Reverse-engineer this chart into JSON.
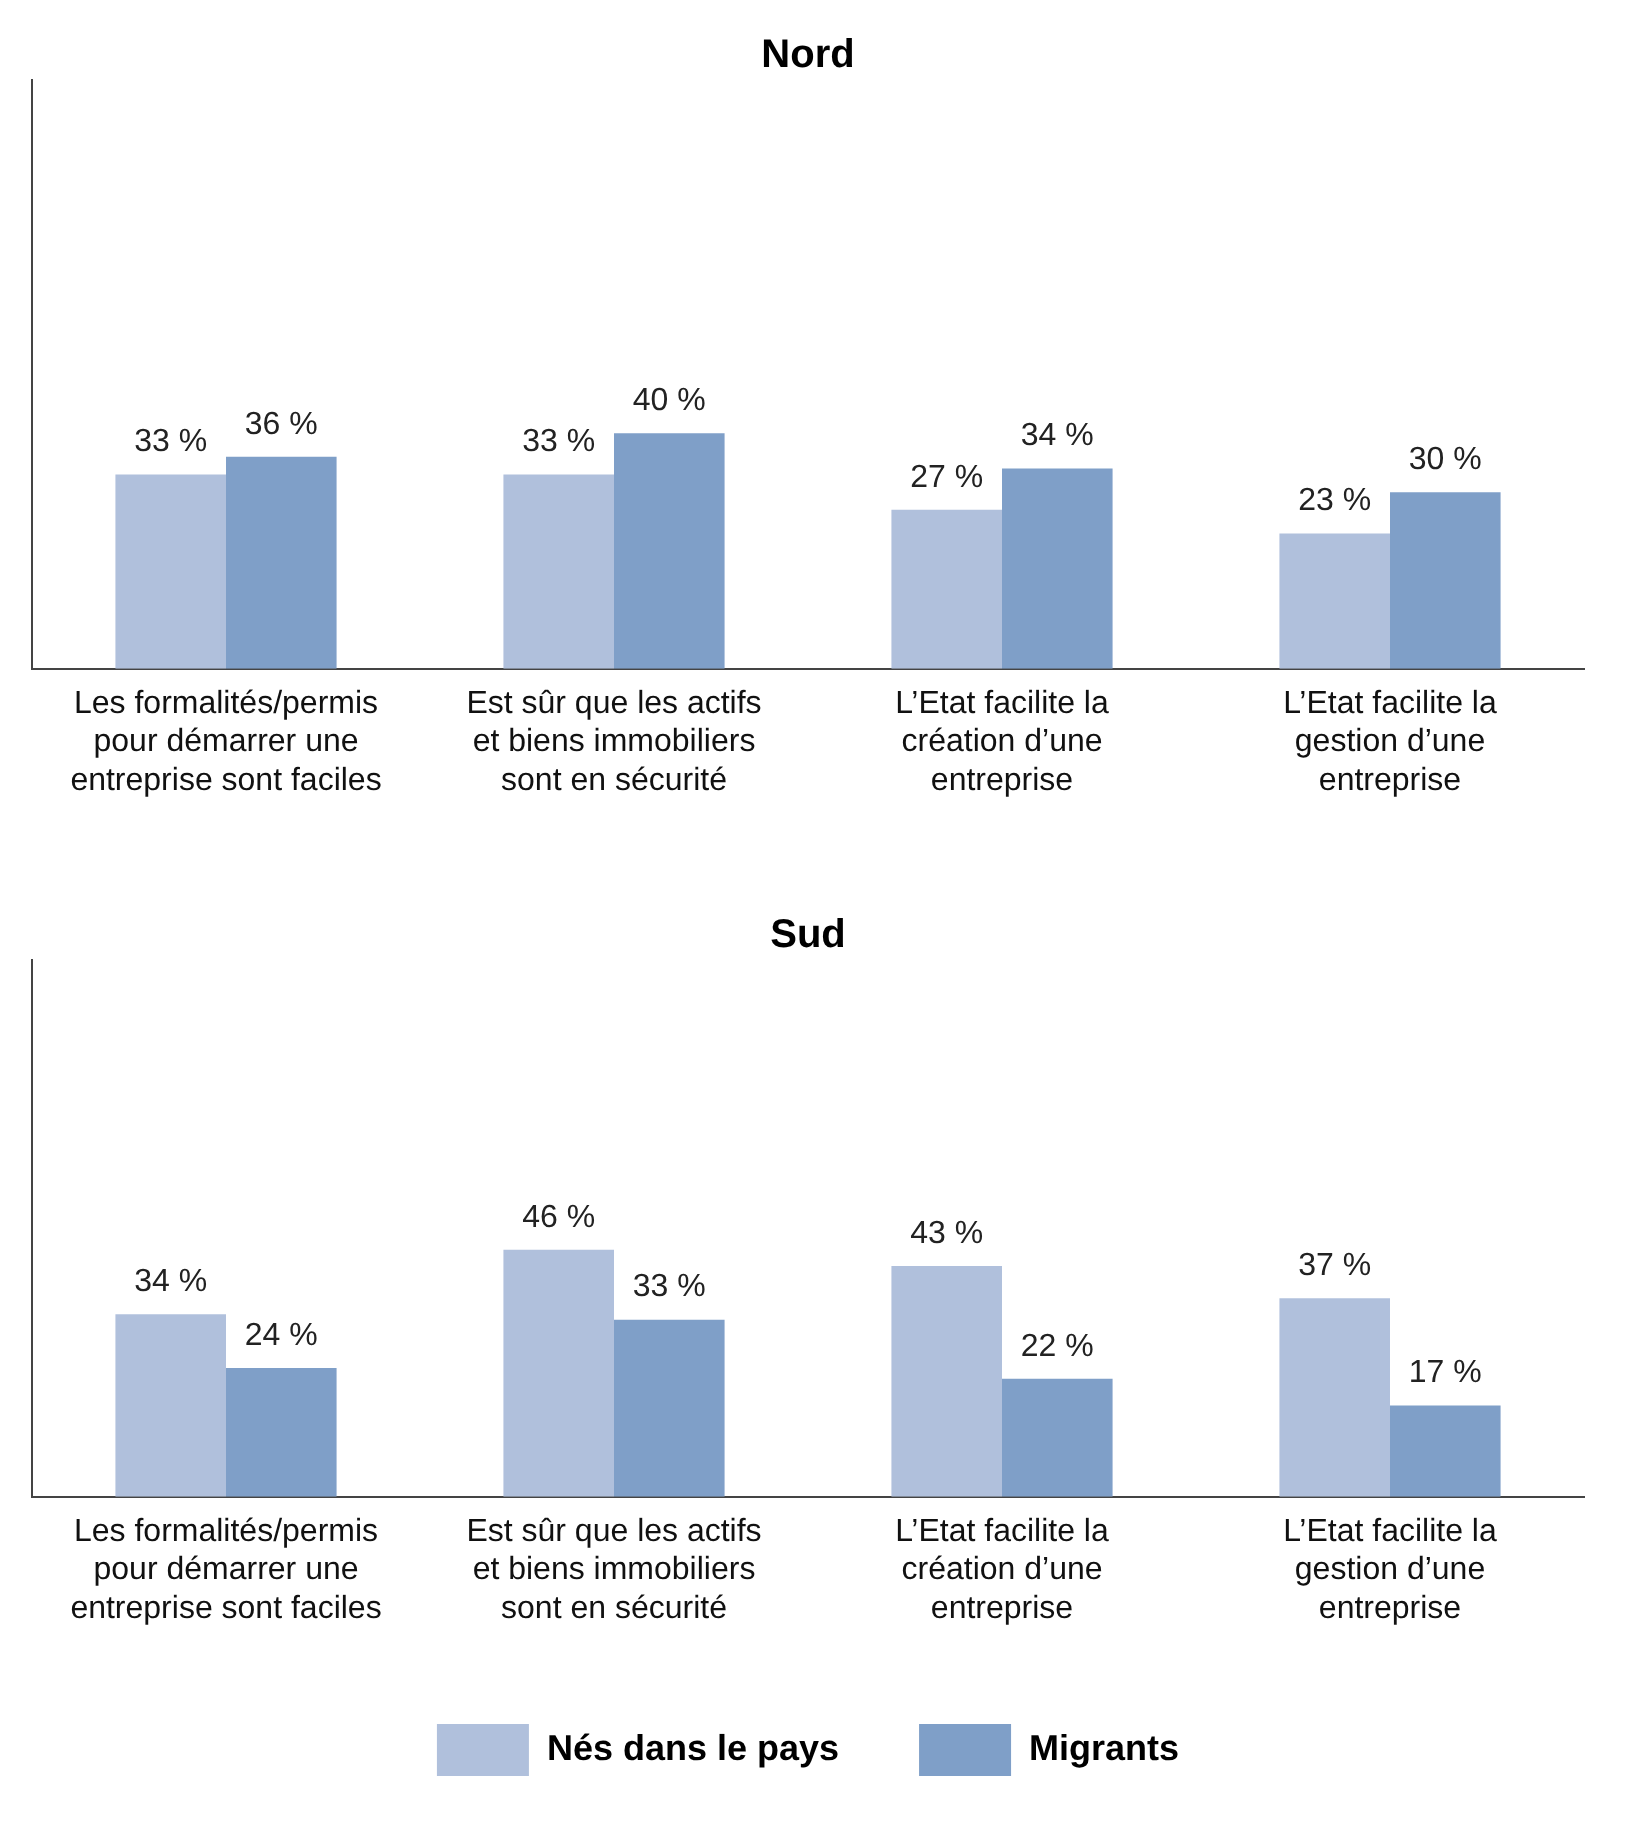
{
  "chart_data": [
    {
      "type": "bar",
      "title": "Nord",
      "categories": [
        "Les formalités/permis pour démarrer une entreprise sont faciles",
        "Est sûr que les actifs et biens immobiliers sont en sécurité",
        "L’Etat facilite la création d’une entreprise",
        "L’Etat facilite la gestion d’une entreprise"
      ],
      "series": [
        {
          "color": "#b0c0dc",
          "values": [
            33,
            33,
            27,
            23
          ],
          "value_labels": [
            "33 %",
            "33 %",
            "27 %",
            "23 %"
          ]
        },
        {
          "color": "#7f9fc8",
          "values": [
            36,
            40,
            34,
            30
          ],
          "value_labels": [
            "36 %",
            "40 %",
            "34 %",
            "30 %"
          ]
        }
      ],
      "ylim": [
        0,
        100
      ],
      "tick_labels": "x",
      "legend": false,
      "grid": false
    },
    {
      "type": "bar",
      "title": "Sud",
      "categories": [
        "Les formalités/permis pour démarrer une entreprise sont faciles",
        "Est sûr que les actifs et biens immobiliers sont en sécurité",
        "L’Etat facilite la création d’une entreprise",
        "L’Etat facilite la gestion d’une entreprise"
      ],
      "series": [
        {
          "name": "Nés dans le pays",
          "color": "#b0c0dc",
          "values": [
            34,
            46,
            43,
            37
          ],
          "value_labels": [
            "34 %",
            "46 %",
            "43 %",
            "37 %"
          ]
        },
        {
          "name": "Migrants",
          "color": "#7f9fc8",
          "values": [
            24,
            33,
            22,
            17
          ],
          "value_labels": [
            "24 %",
            "33 %",
            "22 %",
            "17 %"
          ]
        }
      ],
      "ylim": [
        0,
        100
      ],
      "tick_labels": "x",
      "legend": "bottom",
      "grid": false
    }
  ]
}
